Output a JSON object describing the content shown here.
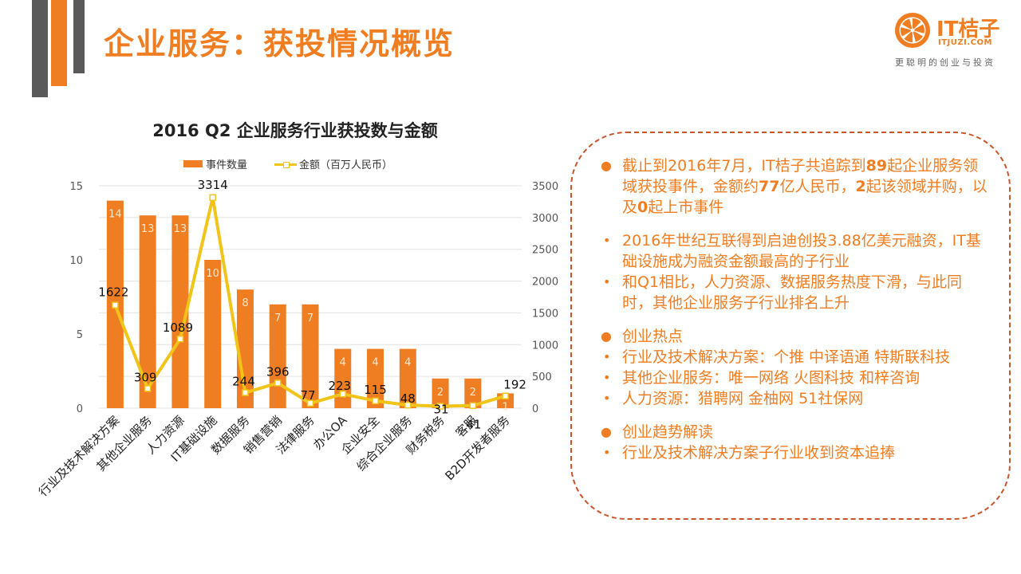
{
  "slide": {
    "title": "企业服务：获投情况概览",
    "brand_color": "#ef7d22",
    "accent_gray": "#5a5a5a"
  },
  "logo": {
    "name": "IT桔子",
    "domain": "ITJUZI.COM",
    "tagline": "更聪明的创业与投资",
    "icon": "orange-slice-icon"
  },
  "legend": {
    "bar_label": "事件数量",
    "line_label": "金额（百万人民币）"
  },
  "chart_data": {
    "type": "bar",
    "title": "2016 Q2 企业服务行业获投数与金额",
    "categories": [
      "行业及技术解决方案",
      "其他企业服务",
      "人力资源",
      "IT基础设施",
      "数据服务",
      "销售营销",
      "法律服务",
      "办公OA",
      "企业安全",
      "综合企业服务",
      "财务税务",
      "客服",
      "B2D开发者服务"
    ],
    "series": [
      {
        "name": "事件数量",
        "type": "bar",
        "axis": "left",
        "color": "#ef7d22",
        "values": [
          14,
          13,
          13,
          10,
          8,
          7,
          7,
          4,
          4,
          4,
          2,
          2,
          1
        ]
      },
      {
        "name": "金额（百万人民币）",
        "type": "line",
        "axis": "right",
        "color": "#f0c419",
        "values": [
          1622,
          309,
          1089,
          3314,
          244,
          396,
          77,
          223,
          115,
          48,
          31,
          41,
          192
        ]
      }
    ],
    "ylim_left": [
      0,
      15
    ],
    "yticks_left": [
      0,
      5,
      10,
      15
    ],
    "ylim_right": [
      0,
      3500
    ],
    "yticks_right": [
      0,
      500,
      1000,
      1500,
      2000,
      2500,
      3000,
      3500
    ],
    "grid": true,
    "legend_position": "top"
  },
  "info": {
    "items": [
      {
        "kind": "dot",
        "segments": [
          {
            "t": "截止到2016年7月，IT桔子共追踪到"
          },
          {
            "t": "89",
            "b": true
          },
          {
            "t": "起企业服务领域获投事件，金额约"
          },
          {
            "t": "77",
            "b": true
          },
          {
            "t": "亿人民币，"
          },
          {
            "t": "2",
            "b": true
          },
          {
            "t": "起该领域并购，以及"
          },
          {
            "t": "0",
            "b": true
          },
          {
            "t": "起上市事件"
          }
        ]
      },
      {
        "kind": "gap"
      },
      {
        "kind": "small",
        "segments": [
          {
            "t": "2016年世纪互联得到启迪创投3.88亿美元融资，IT基础设施成为融资金额最高的子行业"
          }
        ]
      },
      {
        "kind": "small",
        "segments": [
          {
            "t": "和Q1相比，人力资源、数据服务热度下滑，与此同时，其他企业服务子行业排名上升"
          }
        ]
      },
      {
        "kind": "gap"
      },
      {
        "kind": "dot",
        "segments": [
          {
            "t": "创业热点"
          }
        ]
      },
      {
        "kind": "small",
        "segments": [
          {
            "t": "行业及技术解决方案：个推  中译语通  特斯联科技"
          }
        ]
      },
      {
        "kind": "small",
        "segments": [
          {
            "t": "其他企业服务：唯一网络  火图科技  和梓咨询"
          }
        ]
      },
      {
        "kind": "small",
        "segments": [
          {
            "t": "人力资源：猎聘网  金柚网  51社保网"
          }
        ]
      },
      {
        "kind": "gap"
      },
      {
        "kind": "dot",
        "segments": [
          {
            "t": "创业趋势解读"
          }
        ]
      },
      {
        "kind": "small",
        "segments": [
          {
            "t": "行业及技术解决方案子行业收到资本追捧"
          }
        ]
      }
    ],
    "bullet_dot": "●",
    "bullet_small": "•",
    "border_color": "#c8542a"
  }
}
